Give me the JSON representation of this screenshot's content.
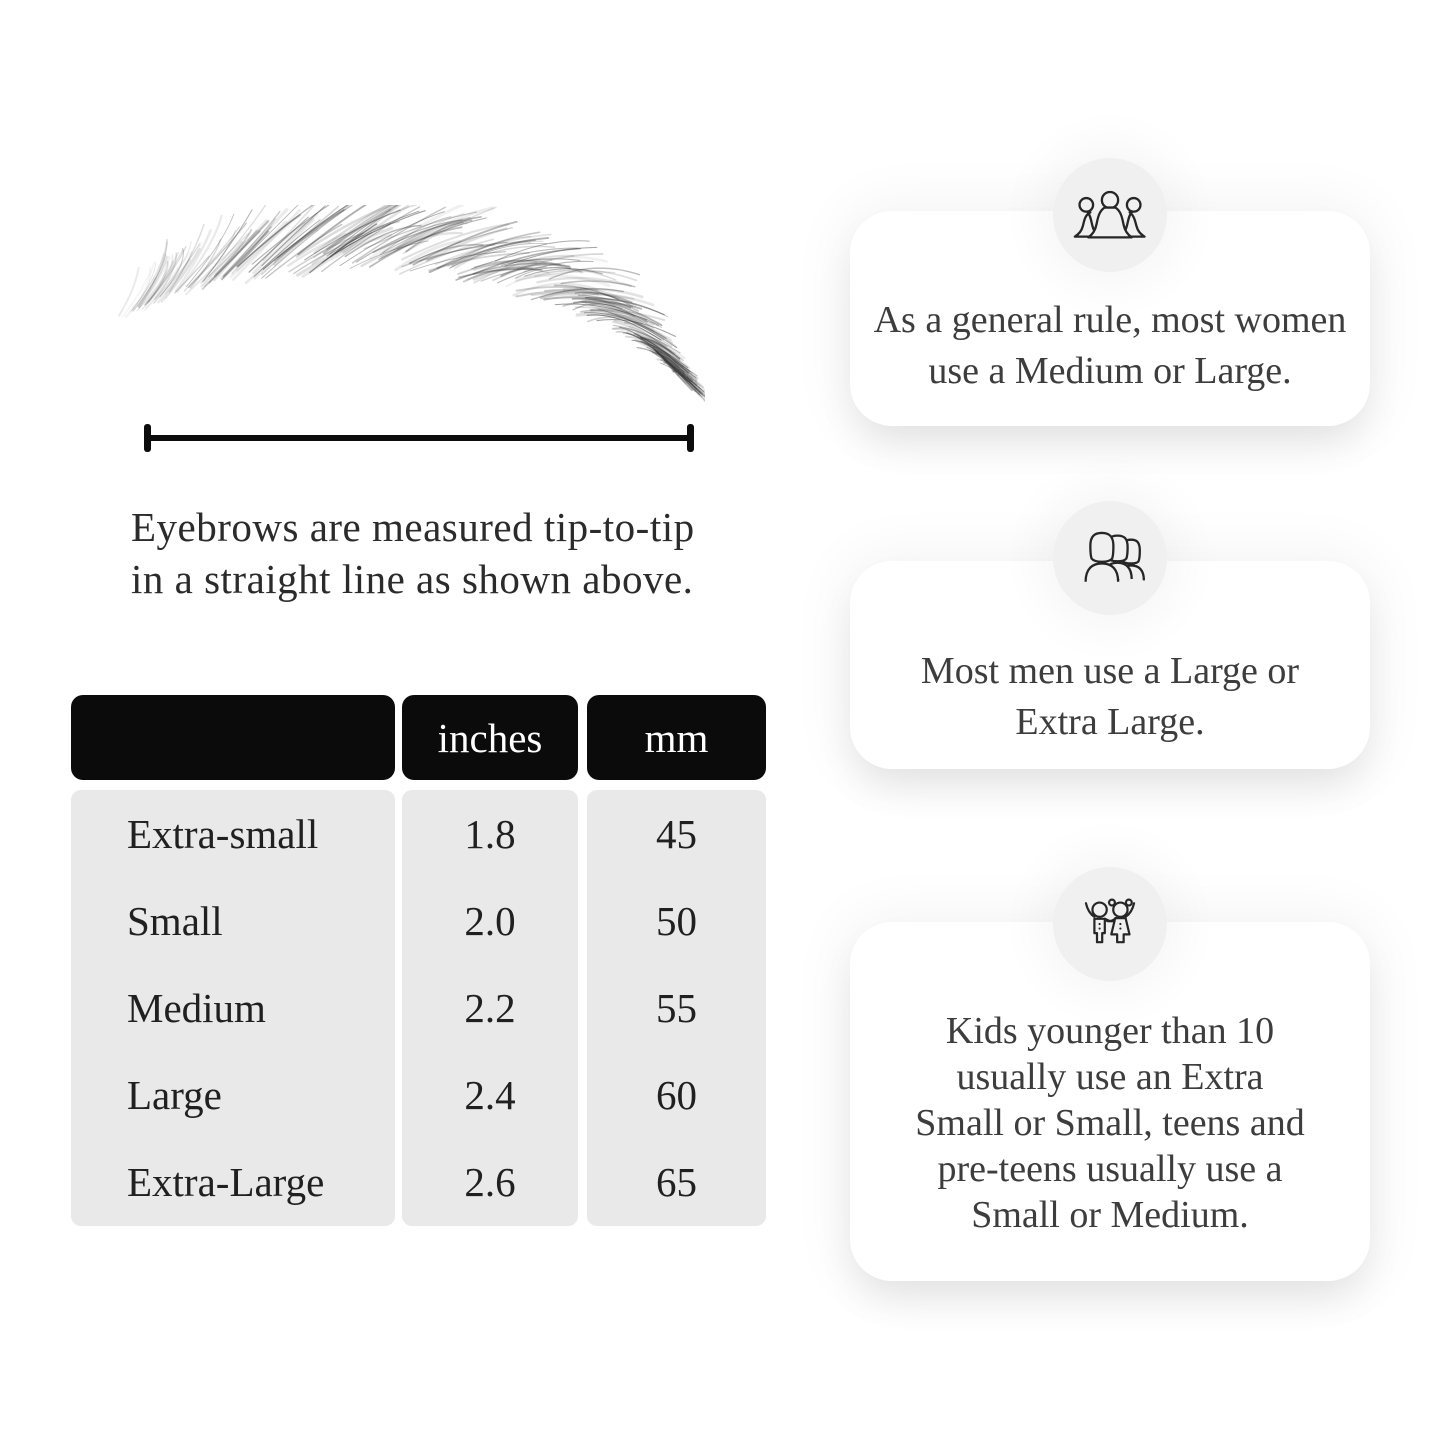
{
  "measurement": {
    "caption_lines": [
      "Eyebrows are measured tip-to-tip",
      "in a straight line as shown above."
    ]
  },
  "size_table": {
    "columns": [
      "",
      "inches",
      "mm"
    ],
    "rows": [
      {
        "label": "Extra-small",
        "inches": "1.8",
        "mm": "45"
      },
      {
        "label": "Small",
        "inches": "2.0",
        "mm": "50"
      },
      {
        "label": "Medium",
        "inches": "2.2",
        "mm": "55"
      },
      {
        "label": "Large",
        "inches": "2.4",
        "mm": "60"
      },
      {
        "label": "Extra-Large",
        "inches": "2.6",
        "mm": "65"
      }
    ]
  },
  "cards": [
    {
      "icon": "women-group-icon",
      "lines": [
        "As a general rule, most women",
        "use a Medium or Large."
      ]
    },
    {
      "icon": "men-group-icon",
      "lines": [
        "Most men use a Large or",
        "Extra Large."
      ]
    },
    {
      "icon": "kids-icon",
      "lines": [
        "Kids younger than 10",
        "usually use an Extra",
        "Small or Small, teens and",
        "pre-teens usually use a",
        "Small or Medium."
      ]
    }
  ],
  "colors": {
    "page_bg": "#ffffff",
    "header_bg": "#0b0b0b",
    "header_text": "#ffffff",
    "table_body_bg": "#e9e9e9",
    "card_bg": "#ffffff",
    "icon_circle_bg": "#f0f0f0",
    "text": "#2d2d2d"
  }
}
